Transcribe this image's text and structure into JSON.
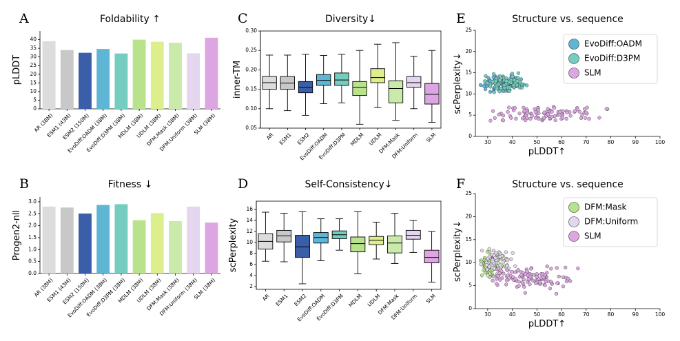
{
  "colors": {
    "AR": "#dcdcdc",
    "ESM1": "#c8c8c8",
    "ESM2": "#3a5ea8",
    "OADM": "#5fb6d4",
    "D3PM": "#74cdbf",
    "MDLM": "#b8e38c",
    "UDLM": "#dcef8c",
    "DFMMask": "#c9eaab",
    "DFMUniform": "#e3d6ee",
    "SLM": "#dda6e2"
  },
  "chart_data": [
    {
      "id": "A",
      "type": "bar",
      "panel_letter": "A",
      "title": "Foldability ↑",
      "xlabel": "",
      "ylabel": "pLDDT",
      "ylim": [
        0,
        45
      ],
      "yticks": [
        "0",
        "5",
        "10",
        "15",
        "20",
        "25",
        "30",
        "35",
        "40"
      ],
      "categories": [
        "AR (38M)",
        "ESM1 (43M)",
        "ESM2 (150M)",
        "EvoDiff:OADM (38M)",
        "EvoDiff:D3PM (38M)",
        "MDLM (38M)",
        "UDLM (38M)",
        "DFM:Mask (38M)",
        "DFM:Uniform (38M)",
        "SLM (38M)"
      ],
      "values": [
        39.1,
        34.0,
        32.4,
        34.6,
        32.0,
        40.0,
        38.8,
        38.2,
        32.1,
        41.1
      ],
      "color_keys": [
        "AR",
        "ESM1",
        "ESM2",
        "OADM",
        "D3PM",
        "MDLM",
        "UDLM",
        "DFMMask",
        "DFMUniform",
        "SLM"
      ]
    },
    {
      "id": "B",
      "type": "bar",
      "panel_letter": "B",
      "title": "Fitness ↓",
      "xlabel": "",
      "ylabel": "Progen2-nll",
      "ylim": [
        0,
        3.2
      ],
      "yticks": [
        "0.0",
        "0.5",
        "1.0",
        "1.5",
        "2.0",
        "2.5",
        "3.0"
      ],
      "categories": [
        "AR (38M)",
        "ESM1 (43M)",
        "ESM2 (150M)",
        "EvoDiff:OADM (38M)",
        "EvoDiff:D3PM (38M)",
        "MDLM (38M)",
        "UDLM (38M)",
        "DFM:Mask (38M)",
        "DFM:Uniform (38M)",
        "SLM (38M)"
      ],
      "values": [
        2.8,
        2.76,
        2.51,
        2.87,
        2.9,
        2.23,
        2.53,
        2.19,
        2.8,
        2.13
      ],
      "color_keys": [
        "AR",
        "ESM1",
        "ESM2",
        "OADM",
        "D3PM",
        "MDLM",
        "UDLM",
        "DFMMask",
        "DFMUniform",
        "SLM"
      ]
    },
    {
      "id": "C",
      "type": "box",
      "panel_letter": "C",
      "title": "Diversity↓",
      "xlabel": "",
      "ylabel": "inner-TM",
      "ylim": [
        0.05,
        0.3
      ],
      "yticks": [
        "0.05",
        "0.10",
        "0.15",
        "0.20",
        "0.25",
        "0.30"
      ],
      "categories": [
        "AR",
        "ESM1",
        "ESM2",
        "EvoDiff:OADM",
        "EvoDiff:D3PM",
        "MDLM",
        "UDLM",
        "DFM:Mask",
        "DFM:Uniform",
        "SLM"
      ],
      "boxes": [
        {
          "min": 0.1,
          "q1": 0.15,
          "median": 0.167,
          "q3": 0.183,
          "max": 0.238
        },
        {
          "min": 0.095,
          "q1": 0.15,
          "median": 0.166,
          "q3": 0.183,
          "max": 0.238
        },
        {
          "min": 0.083,
          "q1": 0.141,
          "median": 0.155,
          "q3": 0.17,
          "max": 0.24
        },
        {
          "min": 0.113,
          "q1": 0.16,
          "median": 0.173,
          "q3": 0.188,
          "max": 0.237
        },
        {
          "min": 0.115,
          "q1": 0.16,
          "median": 0.174,
          "q3": 0.192,
          "max": 0.24
        },
        {
          "min": 0.06,
          "q1": 0.134,
          "median": 0.155,
          "q3": 0.17,
          "max": 0.25
        },
        {
          "min": 0.103,
          "q1": 0.167,
          "median": 0.18,
          "q3": 0.203,
          "max": 0.266
        },
        {
          "min": 0.07,
          "q1": 0.115,
          "median": 0.152,
          "q3": 0.172,
          "max": 0.27
        },
        {
          "min": 0.1,
          "q1": 0.155,
          "median": 0.167,
          "q3": 0.183,
          "max": 0.235
        },
        {
          "min": 0.065,
          "q1": 0.112,
          "median": 0.137,
          "q3": 0.165,
          "max": 0.25
        }
      ],
      "color_keys": [
        "AR",
        "ESM1",
        "ESM2",
        "OADM",
        "D3PM",
        "MDLM",
        "UDLM",
        "DFMMask",
        "DFMUniform",
        "SLM"
      ]
    },
    {
      "id": "D",
      "type": "box",
      "panel_letter": "D",
      "title": "Self-Consistency↓",
      "xlabel": "",
      "ylabel": "scPerplexity",
      "ylim": [
        1.5,
        17.5
      ],
      "yticks": [
        "2",
        "4",
        "6",
        "8",
        "10",
        "12",
        "14",
        "16"
      ],
      "categories": [
        "AR",
        "ESM1",
        "ESM2",
        "EvoDiff:OADM",
        "EvoDiff:D3PM",
        "MDLM",
        "UDLM",
        "DFM:Mask",
        "DFM:Uniform",
        "SLM"
      ],
      "boxes": [
        {
          "min": 6.6,
          "q1": 8.8,
          "median": 10.2,
          "q3": 11.6,
          "max": 15.5
        },
        {
          "min": 6.5,
          "q1": 10.1,
          "median": 11.2,
          "q3": 12.2,
          "max": 15.3
        },
        {
          "min": 2.5,
          "q1": 7.3,
          "median": 9.2,
          "q3": 11.3,
          "max": 15.6
        },
        {
          "min": 6.7,
          "q1": 9.9,
          "median": 10.9,
          "q3": 11.8,
          "max": 14.3
        },
        {
          "min": 8.6,
          "q1": 10.7,
          "median": 11.4,
          "q3": 12.1,
          "max": 14.3
        },
        {
          "min": 4.3,
          "q1": 8.3,
          "median": 9.8,
          "q3": 11.0,
          "max": 15.6
        },
        {
          "min": 7.0,
          "q1": 9.6,
          "median": 10.4,
          "q3": 11.1,
          "max": 13.7
        },
        {
          "min": 6.2,
          "q1": 8.1,
          "median": 9.9,
          "q3": 11.2,
          "max": 15.3
        },
        {
          "min": 8.2,
          "q1": 10.6,
          "median": 11.3,
          "q3": 12.2,
          "max": 14.0
        },
        {
          "min": 2.8,
          "q1": 6.3,
          "median": 7.3,
          "q3": 8.6,
          "max": 12.0
        }
      ],
      "color_keys": [
        "AR",
        "ESM1",
        "ESM2",
        "OADM",
        "D3PM",
        "MDLM",
        "UDLM",
        "DFMMask",
        "DFMUniform",
        "SLM"
      ]
    },
    {
      "id": "E",
      "type": "scatter",
      "panel_letter": "E",
      "title": "Structure vs. sequence",
      "xlabel": "pLDDT↑",
      "ylabel": "scPerplexity↓",
      "xlim": [
        25,
        100
      ],
      "ylim": [
        0,
        25
      ],
      "xticks": [
        "30",
        "40",
        "50",
        "60",
        "70",
        "80",
        "90",
        "100"
      ],
      "yticks": [
        "0",
        "5",
        "10",
        "15",
        "20",
        "25"
      ],
      "series": [
        {
          "name": "EvoDiff:OADM",
          "color_key": "OADM",
          "n": 110,
          "x_center": 37,
          "x_spread": 7,
          "y_center": 12.5,
          "y_spread": 1.6
        },
        {
          "name": "EvoDiff:D3PM",
          "color_key": "D3PM",
          "n": 70,
          "x_center": 37,
          "x_spread": 7,
          "y_center": 12.6,
          "y_spread": 1.6
        },
        {
          "name": "SLM",
          "color_key": "SLM",
          "n": 110,
          "x_center": 55,
          "x_spread": 18,
          "y_center": 5.3,
          "y_spread": 1.5
        }
      ]
    },
    {
      "id": "F",
      "type": "scatter",
      "panel_letter": "F",
      "title": "Structure vs. sequence",
      "xlabel": "pLDDT↑",
      "ylabel": "scPerplexity↓",
      "xlim": [
        25,
        100
      ],
      "ylim": [
        0,
        25
      ],
      "xticks": [
        "30",
        "40",
        "50",
        "60",
        "70",
        "80",
        "90",
        "100"
      ],
      "yticks": [
        "0",
        "5",
        "10",
        "15",
        "20",
        "25"
      ],
      "series": [
        {
          "name": "DFM:Mask",
          "color_key": "MDLM",
          "n": 100,
          "x_center": 32,
          "x_spread": 5,
          "y_center": 9.5,
          "y_spread": 2.3
        },
        {
          "name": "DFM:Uniform",
          "color_key": "DFMUniform",
          "n": 60,
          "x_center": 34,
          "x_spread": 6,
          "y_center": 10.5,
          "y_spread": 2.5
        },
        {
          "name": "SLM",
          "color_key": "SLM",
          "n": 120,
          "x_center": 48,
          "x_spread": 14,
          "y_center": 6.5,
          "y_spread": 2.2
        }
      ]
    }
  ]
}
